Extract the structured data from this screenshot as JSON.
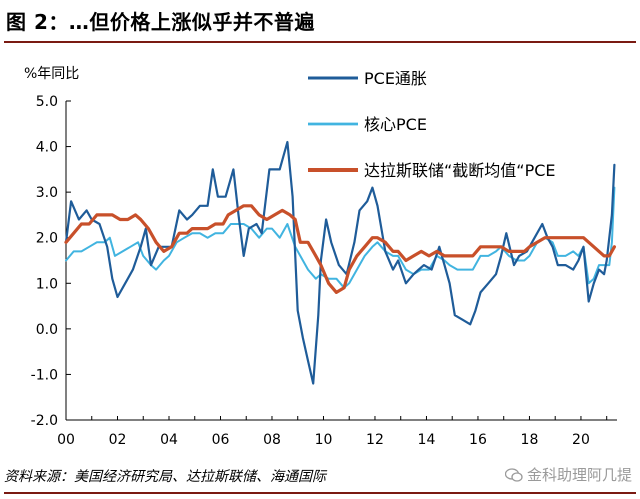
{
  "header": {
    "title": "图 2：…但价格上涨似乎并不普遍"
  },
  "footer": {
    "source": "资料来源：美国经济研究局、达拉斯联储、海通国际",
    "watermark": "金科助理阿几提"
  },
  "colors": {
    "pce": "#1f5c99",
    "core_pce": "#41b4e0",
    "trimmed_mean": "#c8502a",
    "rule": "#7a1a12"
  },
  "chart_data": {
    "type": "line",
    "title": "",
    "ylabel": "%年同比",
    "ylim": [
      -2.0,
      5.0
    ],
    "yticks": [
      "5.0",
      "4.0",
      "3.0",
      "2.0",
      "1.0",
      "0.0",
      "-1.0",
      "-2.0"
    ],
    "yticks_values": [
      5.0,
      4.0,
      3.0,
      2.0,
      1.0,
      0.0,
      -1.0,
      -2.0
    ],
    "xlim": [
      2000,
      2021.4
    ],
    "xticks": [
      "00",
      "02",
      "04",
      "06",
      "08",
      "10",
      "12",
      "14",
      "16",
      "18",
      "20"
    ],
    "xticks_values": [
      2000,
      2002,
      2004,
      2006,
      2008,
      2010,
      2012,
      2014,
      2016,
      2018,
      2020
    ],
    "grid": false,
    "legend": "top-right",
    "series": [
      {
        "name": "PCE通胀",
        "points": [
          [
            2000.0,
            1.9
          ],
          [
            2000.2,
            2.8
          ],
          [
            2000.5,
            2.4
          ],
          [
            2000.8,
            2.6
          ],
          [
            2001.0,
            2.4
          ],
          [
            2001.3,
            2.3
          ],
          [
            2001.6,
            1.8
          ],
          [
            2001.8,
            1.1
          ],
          [
            2002.0,
            0.7
          ],
          [
            2002.3,
            1.0
          ],
          [
            2002.6,
            1.3
          ],
          [
            2002.9,
            1.8
          ],
          [
            2003.1,
            2.2
          ],
          [
            2003.3,
            1.4
          ],
          [
            2003.6,
            1.8
          ],
          [
            2003.9,
            1.8
          ],
          [
            2004.1,
            1.8
          ],
          [
            2004.4,
            2.6
          ],
          [
            2004.7,
            2.4
          ],
          [
            2004.9,
            2.5
          ],
          [
            2005.2,
            2.7
          ],
          [
            2005.5,
            2.7
          ],
          [
            2005.7,
            3.5
          ],
          [
            2005.9,
            2.9
          ],
          [
            2006.2,
            2.9
          ],
          [
            2006.5,
            3.5
          ],
          [
            2006.7,
            2.5
          ],
          [
            2006.9,
            1.6
          ],
          [
            2007.1,
            2.2
          ],
          [
            2007.4,
            2.3
          ],
          [
            2007.6,
            2.1
          ],
          [
            2007.9,
            3.5
          ],
          [
            2008.1,
            3.5
          ],
          [
            2008.3,
            3.5
          ],
          [
            2008.6,
            4.1
          ],
          [
            2008.8,
            2.9
          ],
          [
            2009.0,
            0.4
          ],
          [
            2009.2,
            -0.2
          ],
          [
            2009.4,
            -0.7
          ],
          [
            2009.6,
            -1.2
          ],
          [
            2009.8,
            0.3
          ],
          [
            2009.9,
            1.5
          ],
          [
            2010.1,
            2.4
          ],
          [
            2010.3,
            1.9
          ],
          [
            2010.6,
            1.4
          ],
          [
            2010.9,
            1.2
          ],
          [
            2011.2,
            1.9
          ],
          [
            2011.4,
            2.6
          ],
          [
            2011.7,
            2.8
          ],
          [
            2011.9,
            3.1
          ],
          [
            2012.1,
            2.7
          ],
          [
            2012.4,
            1.7
          ],
          [
            2012.7,
            1.3
          ],
          [
            2012.9,
            1.5
          ],
          [
            2013.2,
            1.0
          ],
          [
            2013.5,
            1.2
          ],
          [
            2013.7,
            1.3
          ],
          [
            2013.9,
            1.4
          ],
          [
            2014.2,
            1.3
          ],
          [
            2014.5,
            1.8
          ],
          [
            2014.7,
            1.4
          ],
          [
            2014.9,
            1.0
          ],
          [
            2015.1,
            0.3
          ],
          [
            2015.4,
            0.2
          ],
          [
            2015.7,
            0.1
          ],
          [
            2015.9,
            0.4
          ],
          [
            2016.1,
            0.8
          ],
          [
            2016.4,
            1.0
          ],
          [
            2016.7,
            1.2
          ],
          [
            2016.9,
            1.6
          ],
          [
            2017.1,
            2.1
          ],
          [
            2017.4,
            1.4
          ],
          [
            2017.6,
            1.6
          ],
          [
            2017.9,
            1.7
          ],
          [
            2018.2,
            2.0
          ],
          [
            2018.5,
            2.3
          ],
          [
            2018.7,
            2.0
          ],
          [
            2018.9,
            1.8
          ],
          [
            2019.1,
            1.4
          ],
          [
            2019.4,
            1.4
          ],
          [
            2019.7,
            1.3
          ],
          [
            2019.9,
            1.5
          ],
          [
            2020.1,
            1.8
          ],
          [
            2020.3,
            0.6
          ],
          [
            2020.5,
            1.0
          ],
          [
            2020.7,
            1.3
          ],
          [
            2020.9,
            1.2
          ],
          [
            2021.0,
            1.5
          ],
          [
            2021.2,
            2.5
          ],
          [
            2021.3,
            3.6
          ]
        ]
      },
      {
        "name": "核心PCE",
        "points": [
          [
            2000.0,
            1.5
          ],
          [
            2000.3,
            1.7
          ],
          [
            2000.6,
            1.7
          ],
          [
            2000.9,
            1.8
          ],
          [
            2001.2,
            1.9
          ],
          [
            2001.5,
            1.9
          ],
          [
            2001.7,
            2.0
          ],
          [
            2001.9,
            1.6
          ],
          [
            2002.2,
            1.7
          ],
          [
            2002.5,
            1.8
          ],
          [
            2002.8,
            1.9
          ],
          [
            2003.0,
            1.6
          ],
          [
            2003.3,
            1.4
          ],
          [
            2003.5,
            1.3
          ],
          [
            2003.8,
            1.5
          ],
          [
            2004.0,
            1.6
          ],
          [
            2004.3,
            1.9
          ],
          [
            2004.6,
            2.0
          ],
          [
            2004.9,
            2.1
          ],
          [
            2005.2,
            2.1
          ],
          [
            2005.5,
            2.0
          ],
          [
            2005.8,
            2.1
          ],
          [
            2006.1,
            2.1
          ],
          [
            2006.4,
            2.3
          ],
          [
            2006.7,
            2.3
          ],
          [
            2006.9,
            2.3
          ],
          [
            2007.2,
            2.2
          ],
          [
            2007.5,
            2.0
          ],
          [
            2007.8,
            2.2
          ],
          [
            2008.0,
            2.2
          ],
          [
            2008.3,
            2.0
          ],
          [
            2008.6,
            2.3
          ],
          [
            2008.9,
            1.8
          ],
          [
            2009.1,
            1.6
          ],
          [
            2009.4,
            1.3
          ],
          [
            2009.7,
            1.1
          ],
          [
            2009.9,
            1.2
          ],
          [
            2010.2,
            1.1
          ],
          [
            2010.5,
            1.1
          ],
          [
            2010.8,
            0.9
          ],
          [
            2011.0,
            1.0
          ],
          [
            2011.3,
            1.3
          ],
          [
            2011.6,
            1.6
          ],
          [
            2011.9,
            1.8
          ],
          [
            2012.1,
            1.9
          ],
          [
            2012.4,
            1.7
          ],
          [
            2012.7,
            1.6
          ],
          [
            2012.9,
            1.6
          ],
          [
            2013.2,
            1.3
          ],
          [
            2013.5,
            1.2
          ],
          [
            2013.8,
            1.3
          ],
          [
            2014.1,
            1.3
          ],
          [
            2014.4,
            1.6
          ],
          [
            2014.7,
            1.5
          ],
          [
            2014.9,
            1.4
          ],
          [
            2015.2,
            1.3
          ],
          [
            2015.5,
            1.3
          ],
          [
            2015.8,
            1.3
          ],
          [
            2016.1,
            1.6
          ],
          [
            2016.4,
            1.6
          ],
          [
            2016.7,
            1.7
          ],
          [
            2016.9,
            1.8
          ],
          [
            2017.2,
            1.6
          ],
          [
            2017.5,
            1.5
          ],
          [
            2017.8,
            1.5
          ],
          [
            2018.0,
            1.6
          ],
          [
            2018.3,
            1.9
          ],
          [
            2018.6,
            2.0
          ],
          [
            2018.9,
            1.9
          ],
          [
            2019.1,
            1.6
          ],
          [
            2019.4,
            1.6
          ],
          [
            2019.7,
            1.7
          ],
          [
            2019.9,
            1.6
          ],
          [
            2020.1,
            1.8
          ],
          [
            2020.3,
            1.0
          ],
          [
            2020.5,
            1.1
          ],
          [
            2020.7,
            1.4
          ],
          [
            2020.9,
            1.4
          ],
          [
            2021.1,
            1.4
          ],
          [
            2021.2,
            1.9
          ],
          [
            2021.3,
            3.1
          ]
        ]
      },
      {
        "name": "达拉斯联储“截断均值“PCE",
        "points": [
          [
            2000.0,
            1.9
          ],
          [
            2000.3,
            2.1
          ],
          [
            2000.6,
            2.3
          ],
          [
            2000.9,
            2.3
          ],
          [
            2001.2,
            2.5
          ],
          [
            2001.5,
            2.5
          ],
          [
            2001.8,
            2.5
          ],
          [
            2002.1,
            2.4
          ],
          [
            2002.4,
            2.4
          ],
          [
            2002.7,
            2.5
          ],
          [
            2002.9,
            2.4
          ],
          [
            2003.2,
            2.2
          ],
          [
            2003.5,
            1.9
          ],
          [
            2003.8,
            1.7
          ],
          [
            2004.1,
            1.8
          ],
          [
            2004.4,
            2.1
          ],
          [
            2004.7,
            2.1
          ],
          [
            2004.9,
            2.2
          ],
          [
            2005.2,
            2.2
          ],
          [
            2005.5,
            2.2
          ],
          [
            2005.8,
            2.3
          ],
          [
            2006.1,
            2.3
          ],
          [
            2006.3,
            2.5
          ],
          [
            2006.6,
            2.6
          ],
          [
            2006.9,
            2.7
          ],
          [
            2007.2,
            2.7
          ],
          [
            2007.5,
            2.5
          ],
          [
            2007.8,
            2.4
          ],
          [
            2008.1,
            2.5
          ],
          [
            2008.4,
            2.6
          ],
          [
            2008.7,
            2.5
          ],
          [
            2008.9,
            2.4
          ],
          [
            2009.1,
            1.9
          ],
          [
            2009.4,
            1.9
          ],
          [
            2009.7,
            1.6
          ],
          [
            2009.9,
            1.4
          ],
          [
            2010.2,
            1.0
          ],
          [
            2010.5,
            0.8
          ],
          [
            2010.8,
            0.9
          ],
          [
            2011.0,
            1.3
          ],
          [
            2011.3,
            1.6
          ],
          [
            2011.6,
            1.8
          ],
          [
            2011.9,
            2.0
          ],
          [
            2012.1,
            2.0
          ],
          [
            2012.4,
            1.9
          ],
          [
            2012.7,
            1.7
          ],
          [
            2012.9,
            1.7
          ],
          [
            2013.2,
            1.5
          ],
          [
            2013.5,
            1.6
          ],
          [
            2013.8,
            1.7
          ],
          [
            2014.1,
            1.6
          ],
          [
            2014.4,
            1.7
          ],
          [
            2014.7,
            1.6
          ],
          [
            2014.9,
            1.6
          ],
          [
            2015.2,
            1.6
          ],
          [
            2015.5,
            1.6
          ],
          [
            2015.8,
            1.6
          ],
          [
            2016.1,
            1.8
          ],
          [
            2016.4,
            1.8
          ],
          [
            2016.7,
            1.8
          ],
          [
            2016.9,
            1.8
          ],
          [
            2017.2,
            1.7
          ],
          [
            2017.5,
            1.7
          ],
          [
            2017.8,
            1.7
          ],
          [
            2018.0,
            1.8
          ],
          [
            2018.3,
            1.9
          ],
          [
            2018.6,
            2.0
          ],
          [
            2018.9,
            2.0
          ],
          [
            2019.1,
            2.0
          ],
          [
            2019.4,
            2.0
          ],
          [
            2019.7,
            2.0
          ],
          [
            2019.9,
            2.0
          ],
          [
            2020.1,
            2.0
          ],
          [
            2020.3,
            1.9
          ],
          [
            2020.5,
            1.8
          ],
          [
            2020.7,
            1.7
          ],
          [
            2020.9,
            1.6
          ],
          [
            2021.1,
            1.6
          ],
          [
            2021.3,
            1.8
          ]
        ]
      }
    ]
  }
}
